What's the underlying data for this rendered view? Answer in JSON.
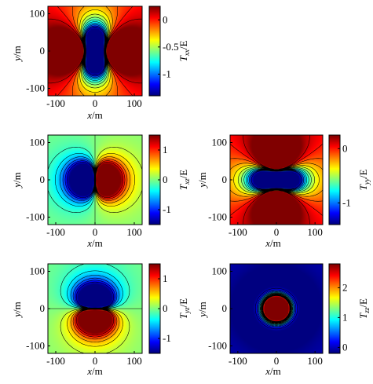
{
  "chart_data": [
    {
      "type": "heatmap",
      "quantity": "xx",
      "xlabel": "x/m",
      "ylabel": "y/m",
      "xlim": [
        -120,
        120
      ],
      "ylim": [
        -120,
        120
      ],
      "xticks": [
        "-100",
        "0",
        "100"
      ],
      "yticks": [
        "100",
        "0",
        "-100"
      ],
      "colorbar": {
        "label": "T",
        "sub": "xx",
        "unit": "/E",
        "range": [
          -1.4,
          0.25
        ],
        "ticks": [
          "0",
          "-0.5",
          "-1"
        ],
        "tick_values": [
          0,
          -0.5,
          -1
        ]
      }
    },
    {
      "type": "heatmap",
      "quantity": "xz",
      "xlabel": "x/m",
      "ylabel": "y/m",
      "xlim": [
        -120,
        120
      ],
      "ylim": [
        -120,
        120
      ],
      "xticks": [
        "-100",
        "0",
        "100"
      ],
      "yticks": [
        "100",
        "0",
        "-100"
      ],
      "colorbar": {
        "label": "T",
        "sub": "xz",
        "unit": "/E",
        "range": [
          -1.5,
          1.5
        ],
        "ticks": [
          "1",
          "0",
          "-1"
        ],
        "tick_values": [
          1,
          0,
          -1
        ]
      }
    },
    {
      "type": "heatmap",
      "quantity": "yy",
      "xlabel": "x/m",
      "ylabel": "y/m",
      "xlim": [
        -120,
        120
      ],
      "ylim": [
        -120,
        120
      ],
      "xticks": [
        "-100",
        "0",
        "100"
      ],
      "yticks": [
        "100",
        "0",
        "-100"
      ],
      "colorbar": {
        "label": "T",
        "sub": "yy",
        "unit": "/E",
        "range": [
          -1.4,
          0.25
        ],
        "ticks": [
          "0",
          "-1"
        ],
        "tick_values": [
          0,
          -1
        ]
      }
    },
    {
      "type": "heatmap",
      "quantity": "yz",
      "xlabel": "x/m",
      "ylabel": "y/m",
      "xlim": [
        -120,
        120
      ],
      "ylim": [
        -120,
        120
      ],
      "xticks": [
        "-100",
        "0",
        "100"
      ],
      "yticks": [
        "100",
        "0",
        "-100"
      ],
      "colorbar": {
        "label": "T",
        "sub": "yz",
        "unit": "/E",
        "range": [
          -1.5,
          1.5
        ],
        "ticks": [
          "1",
          "0",
          "-1"
        ],
        "tick_values": [
          1,
          0,
          -1
        ]
      }
    },
    {
      "type": "heatmap",
      "quantity": "zz",
      "xlabel": "x/m",
      "ylabel": "y/m",
      "xlim": [
        -120,
        120
      ],
      "ylim": [
        -120,
        120
      ],
      "xticks": [
        "-100",
        "0",
        "100"
      ],
      "yticks": [
        "100",
        "0",
        "-100"
      ],
      "colorbar": {
        "label": "T",
        "sub": "zz",
        "unit": "/E",
        "range": [
          -0.2,
          2.8
        ],
        "ticks": [
          "2",
          "1",
          "0"
        ],
        "tick_values": [
          2,
          1,
          0
        ]
      }
    }
  ]
}
